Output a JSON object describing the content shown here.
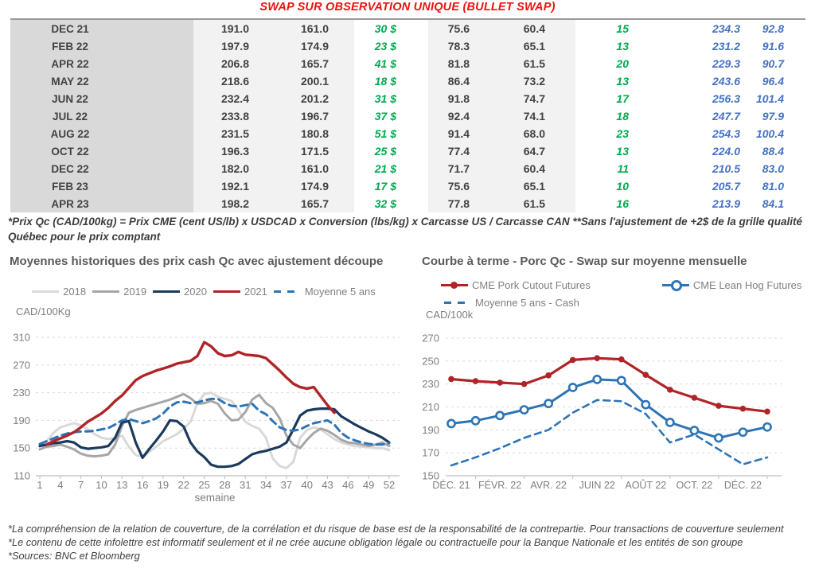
{
  "header": {
    "title": "SWAP SUR OBSERVATION UNIQUE (BULLET SWAP)",
    "title_color": "#ee1111"
  },
  "table": {
    "rows": [
      {
        "month": "DEC 21",
        "values": [
          "191.0",
          "161.0",
          "30 $",
          "75.6",
          "60.4",
          "15",
          "234.3",
          "92.8"
        ]
      },
      {
        "month": "FEB 22",
        "values": [
          "197.9",
          "174.9",
          "23 $",
          "78.3",
          "65.1",
          "13",
          "231.2",
          "91.6"
        ]
      },
      {
        "month": "APR 22",
        "values": [
          "206.8",
          "165.7",
          "41 $",
          "81.8",
          "61.5",
          "20",
          "229.3",
          "90.7"
        ]
      },
      {
        "month": "MAY 22",
        "values": [
          "218.6",
          "200.1",
          "18 $",
          "86.4",
          "73.2",
          "13",
          "243.6",
          "96.4"
        ]
      },
      {
        "month": "JUN 22",
        "values": [
          "232.4",
          "201.2",
          "31 $",
          "91.8",
          "74.7",
          "17",
          "256.3",
          "101.4"
        ]
      },
      {
        "month": "JUL 22",
        "values": [
          "233.8",
          "196.7",
          "37 $",
          "92.4",
          "74.1",
          "18",
          "247.7",
          "97.9"
        ]
      },
      {
        "month": "AUG 22",
        "values": [
          "231.5",
          "180.8",
          "51 $",
          "91.4",
          "68.0",
          "23",
          "254.3",
          "100.4"
        ]
      },
      {
        "month": "OCT 22",
        "values": [
          "196.3",
          "171.5",
          "25 $",
          "77.4",
          "64.7",
          "13",
          "224.0",
          "88.4"
        ]
      },
      {
        "month": "DEC 22",
        "values": [
          "182.0",
          "161.0",
          "21 $",
          "71.7",
          "60.4",
          "11",
          "210.5",
          "83.0"
        ]
      },
      {
        "month": "FEB 23",
        "values": [
          "192.1",
          "174.9",
          "17 $",
          "75.6",
          "65.1",
          "10",
          "205.7",
          "81.0"
        ]
      },
      {
        "month": "APR 23",
        "values": [
          "198.2",
          "165.7",
          "32 $",
          "77.8",
          "61.5",
          "16",
          "213.9",
          "84.1"
        ]
      }
    ],
    "value_colors": {
      "dark": "#424242",
      "green": "#00a94e",
      "blue": "#4472c4"
    },
    "footnote": "*Prix Qc (CAD/100kg) = Prix CME (cent US/lb) x USDCAD x Conversion (lbs/kg) x Carcasse US / Carcasse CAN **Sans l'ajustement de +2$ de la grille qualité\nQuébec pour le prix comptant"
  },
  "chart_data": [
    {
      "type": "line",
      "title": "Moyennes historiques des prix cash Qc avec ajustement découpe",
      "ylabel": "CAD/100Kg",
      "xlabel": "semaine",
      "ylim": [
        110,
        310
      ],
      "yticks": [
        110,
        150,
        190,
        230,
        270,
        310
      ],
      "xticks": [
        1,
        4,
        7,
        10,
        13,
        16,
        19,
        22,
        25,
        28,
        31,
        34,
        37,
        40,
        43,
        46,
        49,
        52
      ],
      "x_range": [
        1,
        52
      ],
      "grid": true,
      "legend_position": "top",
      "series": [
        {
          "name": "2018",
          "color": "#d9d9d9",
          "dash": false,
          "width": 3,
          "values": [
            152,
            160,
            172,
            180,
            183,
            186,
            183,
            177,
            170,
            165,
            163,
            165,
            168,
            152,
            140,
            137,
            145,
            152,
            160,
            165,
            170,
            178,
            188,
            215,
            228,
            230,
            224,
            221,
            218,
            205,
            188,
            182,
            178,
            165,
            135,
            124,
            121,
            130,
            165,
            176,
            180,
            177,
            170,
            163,
            158,
            155,
            153,
            152,
            151,
            150,
            150,
            147
          ]
        },
        {
          "name": "2019",
          "color": "#a6a6a6",
          "dash": false,
          "width": 3,
          "values": [
            148,
            152,
            153,
            155,
            152,
            148,
            142,
            139,
            138,
            139,
            141,
            155,
            182,
            201,
            205,
            208,
            211,
            214,
            217,
            220,
            224,
            228,
            222,
            214,
            215,
            218,
            214,
            200,
            190,
            191,
            202,
            220,
            227,
            215,
            208,
            193,
            168,
            155,
            150,
            162,
            172,
            178,
            175,
            169,
            162,
            158,
            157,
            155,
            153,
            155,
            158,
            153
          ]
        },
        {
          "name": "2020",
          "color": "#1b3a5c",
          "dash": false,
          "width": 3.2,
          "values": [
            153,
            155,
            157,
            158,
            160,
            158,
            151,
            149,
            150,
            151,
            153,
            165,
            187,
            189,
            158,
            136,
            149,
            161,
            174,
            190,
            189,
            181,
            158,
            145,
            137,
            126,
            123,
            123,
            124,
            127,
            134,
            141,
            144,
            146,
            149,
            152,
            158,
            177,
            197,
            204,
            206,
            207,
            207,
            206,
            196,
            190,
            184,
            179,
            174,
            170,
            165,
            158
          ]
        },
        {
          "name": "2021",
          "color": "#b02428",
          "dash": false,
          "width": 3.4,
          "values": [
            null,
            155,
            160,
            164,
            168,
            173,
            180,
            188,
            194,
            200,
            208,
            218,
            226,
            237,
            248,
            254,
            258,
            262,
            265,
            268,
            272,
            274,
            276,
            283,
            303,
            297,
            287,
            283,
            284,
            289,
            285,
            284,
            283,
            280,
            271,
            262,
            252,
            243,
            238,
            236,
            238,
            225,
            212,
            201,
            null,
            null,
            null,
            null,
            null,
            null,
            null,
            null
          ]
        },
        {
          "name": "Moyenne 5 ans",
          "color": "#2e74b5",
          "dash": true,
          "width": 3,
          "values": [
            156,
            160,
            164,
            168,
            171,
            173,
            174,
            174,
            175,
            177,
            179,
            184,
            190,
            192,
            189,
            186,
            189,
            193,
            200,
            210,
            216,
            217,
            215,
            216,
            219,
            221,
            221,
            215,
            211,
            210,
            212,
            214,
            204,
            199,
            189,
            180,
            176,
            175,
            177,
            182,
            186,
            188,
            190,
            184,
            172,
            165,
            161,
            158,
            156,
            155,
            155,
            157
          ]
        }
      ]
    },
    {
      "type": "line",
      "title": "Courbe à terme - Porc Qc - Swap sur moyenne mensuelle",
      "ylabel": "CAD/100k",
      "xlabel": "",
      "ylim": [
        150,
        270
      ],
      "yticks": [
        150,
        170,
        190,
        210,
        230,
        250,
        270
      ],
      "x_count": 14,
      "xtick_labels": [
        "DÉC. 21",
        "FÉVR. 22",
        "AVR. 22",
        "JUIN 22",
        "AOÛT 22",
        "OCT. 22",
        "DÉC. 22"
      ],
      "xtick_indices": [
        0,
        2,
        4,
        6,
        8,
        10,
        12
      ],
      "grid": true,
      "legend_position": "top",
      "series": [
        {
          "name": "CME Pork Cutout Futures",
          "color": "#b02428",
          "dash": false,
          "width": 3.2,
          "marker": "filled",
          "values": [
            234.3,
            232.5,
            231.2,
            230.0,
            237.5,
            251.0,
            252.5,
            251.5,
            238.0,
            225.0,
            218.0,
            211.0,
            208.5,
            206.0
          ]
        },
        {
          "name": "CME Lean Hog Futures",
          "color": "#2e74b5",
          "dash": false,
          "width": 3,
          "marker": "open",
          "values": [
            195.5,
            198.0,
            202.5,
            207.5,
            213.0,
            227.0,
            234.0,
            233.0,
            212.0,
            196.5,
            189.5,
            183.0,
            188.0,
            192.5
          ]
        },
        {
          "name": "Moyenne 5 ans - Cash",
          "color": "#2e74b5",
          "dash": true,
          "width": 2.6,
          "marker": "none",
          "values": [
            159,
            166,
            174,
            183,
            190,
            205,
            216,
            215,
            204,
            179,
            186,
            173,
            160,
            166
          ]
        }
      ]
    }
  ],
  "footer": {
    "lines": [
      "*La compréhension de la relation de couverture, de la corrélation et du risque de base est de la responsabilité de la contrepartie. Pour transactions de couverture seulement",
      "*Le contenu de cette infolettre est informatif seulement et il ne crée aucune obligation légale ou contractuelle pour la Banque Nationale et les entités de son groupe",
      "*Sources: BNC et Bloomberg"
    ]
  }
}
